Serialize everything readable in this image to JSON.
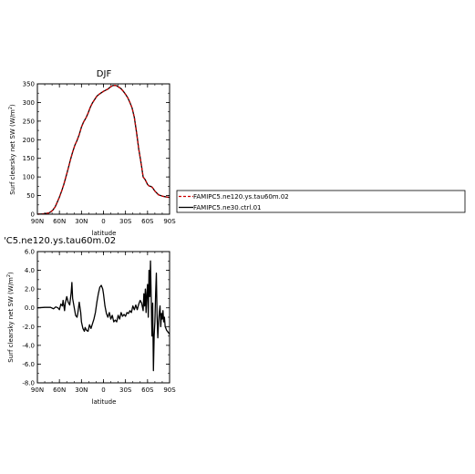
{
  "chart_data": [
    {
      "type": "line",
      "title": "DJF",
      "xlabel": "latitude",
      "ylabel": "Surf clearsky net SW (W/m²)",
      "ylabel_main": "Surf clearsky net SW (W/m",
      "ylabel_sup": "2",
      "ylabel_end": ")",
      "xlim": [
        90,
        -90
      ],
      "ylim": [
        0,
        350
      ],
      "xticks": [
        90,
        60,
        30,
        0,
        -30,
        -60,
        -90
      ],
      "xtick_labels": [
        "90N",
        "60N",
        "30N",
        "0",
        "30S",
        "60S",
        "90S"
      ],
      "yticks": [
        0,
        50,
        100,
        150,
        200,
        250,
        300,
        350
      ],
      "ytick_labels": [
        "0",
        "50",
        "100",
        "150",
        "200",
        "250",
        "300",
        "350"
      ],
      "legend": {
        "placement": "right",
        "entries": [
          "FAMIPC5.ne120.ys.tau60m.02",
          "FAMIPC5.ne30.ctrl.01"
        ]
      },
      "series": [
        {
          "name": "FAMIPC5.ne120.ys.tau60m.02",
          "color": "#cc0000",
          "style": "dashed",
          "x": [
            90,
            82,
            75,
            72,
            69,
            66,
            63,
            60,
            57,
            54,
            51,
            48,
            45,
            42,
            39,
            36,
            33,
            30,
            27,
            24,
            21,
            18,
            15,
            12,
            9,
            6,
            3,
            0,
            -3,
            -6,
            -9,
            -12,
            -15,
            -18,
            -21,
            -24,
            -27,
            -30,
            -33,
            -36,
            -39,
            -42,
            -45,
            -48,
            -51,
            -54,
            -57,
            -60,
            -62,
            -64,
            -66,
            -68,
            -70,
            -72,
            -75,
            -78,
            -81,
            -84,
            -87,
            -90
          ],
          "y": [
            0,
            1,
            3,
            6,
            11,
            19,
            32,
            46,
            62,
            80,
            101,
            123,
            146,
            167,
            185,
            198,
            214,
            234,
            248,
            258,
            271,
            287,
            299,
            308,
            317,
            322,
            326,
            330,
            333,
            336,
            341,
            345,
            346,
            345,
            341,
            337,
            330,
            322,
            313,
            300,
            285,
            260,
            220,
            175,
            140,
            100,
            92,
            80,
            76,
            75,
            73,
            68,
            62,
            58,
            52,
            50,
            48,
            47,
            46,
            45
          ]
        },
        {
          "name": "FAMIPC5.ne30.ctrl.01",
          "color": "#000000",
          "style": "solid",
          "x": [
            90,
            82,
            75,
            72,
            69,
            66,
            63,
            60,
            57,
            54,
            51,
            48,
            45,
            42,
            39,
            36,
            33,
            30,
            27,
            24,
            21,
            18,
            15,
            12,
            9,
            6,
            3,
            0,
            -3,
            -6,
            -9,
            -12,
            -15,
            -18,
            -21,
            -24,
            -27,
            -30,
            -33,
            -36,
            -39,
            -42,
            -45,
            -48,
            -51,
            -54,
            -57,
            -60,
            -62,
            -64,
            -66,
            -68,
            -70,
            -72,
            -75,
            -78,
            -81,
            -84,
            -87,
            -90
          ],
          "y": [
            0,
            1,
            3,
            6,
            11,
            19,
            32,
            46,
            62,
            80,
            101,
            123,
            146,
            167,
            185,
            198,
            214,
            234,
            248,
            258,
            271,
            287,
            299,
            308,
            317,
            322,
            326,
            330,
            333,
            336,
            341,
            345,
            346,
            345,
            341,
            337,
            330,
            322,
            313,
            300,
            285,
            260,
            220,
            175,
            140,
            100,
            92,
            80,
            76,
            75,
            73,
            68,
            62,
            58,
            52,
            50,
            48,
            47,
            46,
            45
          ]
        }
      ]
    },
    {
      "type": "line",
      "title": "'C5.ne120.ys.tau60m.02",
      "xlabel": "latitude",
      "ylabel": "Surf clearsky net SW (W/m²)",
      "ylabel_main": "Surf clearsky net SW (W/m",
      "ylabel_sup": "2",
      "ylabel_end": ")",
      "xlim": [
        90,
        -90
      ],
      "ylim": [
        -8,
        6
      ],
      "xticks": [
        90,
        60,
        30,
        0,
        -30,
        -60,
        -90
      ],
      "xtick_labels": [
        "90N",
        "60N",
        "30N",
        "0",
        "30S",
        "60S",
        "90S"
      ],
      "yticks": [
        -8,
        -6,
        -4,
        -2,
        0,
        2,
        4,
        6
      ],
      "ytick_labels": [
        "-8.0",
        "-6.0",
        "-4.0",
        "-2.0",
        "0.0",
        "2.0",
        "4.0",
        "6.0"
      ],
      "series": [
        {
          "color": "#000000",
          "style": "solid",
          "x": [
            90,
            80,
            72,
            68,
            65,
            62,
            60,
            58,
            56,
            55,
            53,
            52,
            50,
            48,
            46,
            44,
            43,
            42,
            40,
            38,
            36,
            35,
            33,
            31,
            30,
            28,
            26,
            25,
            23,
            21,
            19,
            17,
            15,
            13,
            11,
            9,
            7,
            5,
            3,
            1,
            0,
            -2,
            -4,
            -6,
            -8,
            -10,
            -12,
            -14,
            -16,
            -18,
            -20,
            -22,
            -24,
            -26,
            -28,
            -30,
            -32,
            -34,
            -36,
            -38,
            -40,
            -42,
            -44,
            -46,
            -48,
            -50,
            -52,
            -54,
            -55,
            -56,
            -57,
            -58,
            -59,
            -60,
            -61,
            -62,
            -63,
            -64,
            -65,
            -66,
            -67,
            -68,
            -69,
            -70,
            -71,
            -72,
            -73,
            -74,
            -75,
            -76,
            -77,
            -78,
            -79,
            -80,
            -81,
            -82,
            -83,
            -84,
            -86,
            -88,
            -90
          ],
          "y": [
            0.0,
            0.05,
            0.05,
            -0.1,
            0.1,
            0.0,
            -0.2,
            0.4,
            0.2,
            0.8,
            -0.3,
            0.5,
            1.2,
            0.6,
            0.3,
            1.6,
            2.7,
            1.0,
            0.1,
            -0.8,
            -1.0,
            -0.6,
            0.6,
            -0.5,
            -1.5,
            -2.2,
            -2.5,
            -2.1,
            -2.4,
            -2.5,
            -1.8,
            -2.2,
            -1.7,
            -1.2,
            -0.5,
            0.6,
            1.5,
            2.2,
            2.4,
            2.0,
            1.5,
            0.2,
            -0.6,
            -1.0,
            -0.5,
            -1.2,
            -0.8,
            -1.5,
            -1.3,
            -1.5,
            -0.8,
            -1.2,
            -0.5,
            -0.9,
            -0.7,
            -0.9,
            -0.5,
            -0.6,
            -0.3,
            -0.5,
            0.2,
            -0.2,
            0.3,
            -0.2,
            0.4,
            0.8,
            0.5,
            -0.3,
            1.5,
            0.2,
            2.0,
            -0.5,
            1.5,
            2.5,
            -1.0,
            4.0,
            1.2,
            5.0,
            1.0,
            -3.0,
            0.5,
            -6.7,
            -3.0,
            -1.5,
            1.5,
            3.7,
            -1.0,
            -3.2,
            -1.5,
            -0.5,
            0.2,
            -2.0,
            -0.6,
            -1.2,
            -0.3,
            -1.5,
            -1.0,
            -2.0,
            -2.4,
            -2.6,
            -2.8
          ]
        }
      ]
    }
  ]
}
